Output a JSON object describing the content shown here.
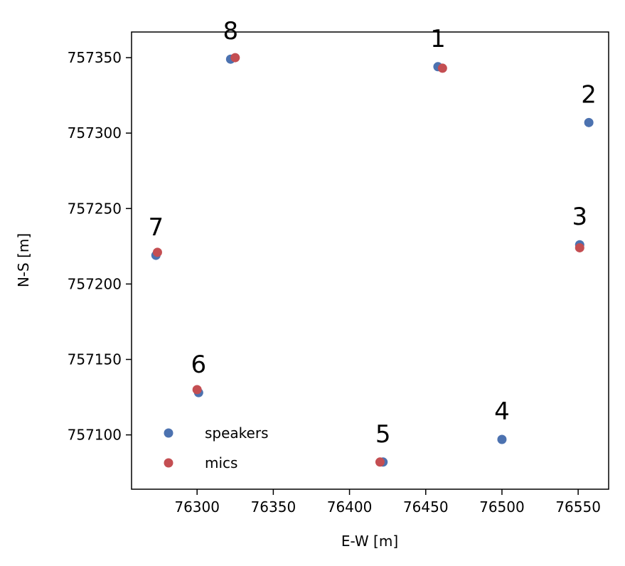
{
  "chart_data": {
    "type": "scatter",
    "xlabel": "E-W [m]",
    "ylabel": "N-S [m]",
    "xlim": [
      76257,
      76570
    ],
    "ylim": [
      757064,
      757367
    ],
    "xticks": [
      76300,
      76350,
      76400,
      76450,
      76500,
      76550
    ],
    "yticks": [
      757100,
      757150,
      757200,
      757250,
      757300,
      757350
    ],
    "grid": false,
    "legend_position": "lower-left",
    "series": [
      {
        "name": "speakers",
        "color": "#4c72b0",
        "points": [
          {
            "x": 76458,
            "y": 757344
          },
          {
            "x": 76557,
            "y": 757307
          },
          {
            "x": 76551,
            "y": 757226
          },
          {
            "x": 76500,
            "y": 757097
          },
          {
            "x": 76422,
            "y": 757082
          },
          {
            "x": 76301,
            "y": 757128
          },
          {
            "x": 76273,
            "y": 757219
          },
          {
            "x": 76322,
            "y": 757349
          }
        ]
      },
      {
        "name": "mics",
        "color": "#c44e52",
        "points": [
          {
            "x": 76461,
            "y": 757343
          },
          {
            "x": 76551,
            "y": 757224
          },
          {
            "x": 76420,
            "y": 757082
          },
          {
            "x": 76300,
            "y": 757130
          },
          {
            "x": 76274,
            "y": 757221
          },
          {
            "x": 76325,
            "y": 757350
          }
        ]
      }
    ],
    "annotations": [
      {
        "text": "1",
        "x": 76458,
        "y": 757344
      },
      {
        "text": "2",
        "x": 76557,
        "y": 757307
      },
      {
        "text": "3",
        "x": 76551,
        "y": 757226
      },
      {
        "text": "4",
        "x": 76500,
        "y": 757097
      },
      {
        "text": "5",
        "x": 76422,
        "y": 757082
      },
      {
        "text": "6",
        "x": 76301,
        "y": 757128
      },
      {
        "text": "7",
        "x": 76273,
        "y": 757219
      },
      {
        "text": "8",
        "x": 76322,
        "y": 757349
      }
    ]
  }
}
